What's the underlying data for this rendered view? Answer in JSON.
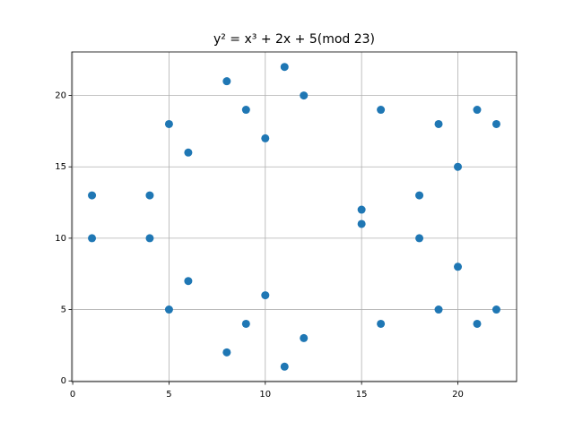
{
  "chart_data": {
    "type": "scatter",
    "title": "y² = x³ + 2x + 5(mod 23)",
    "x": [
      1,
      1,
      4,
      4,
      5,
      5,
      6,
      6,
      8,
      8,
      9,
      9,
      10,
      10,
      11,
      11,
      12,
      12,
      15,
      15,
      16,
      16,
      18,
      18,
      19,
      19,
      20,
      20,
      21,
      21,
      22,
      22
    ],
    "values": [
      10,
      13,
      10,
      13,
      5,
      18,
      7,
      16,
      2,
      21,
      4,
      19,
      6,
      17,
      1,
      22,
      3,
      20,
      11,
      12,
      4,
      19,
      10,
      13,
      5,
      18,
      8,
      15,
      4,
      19,
      5,
      18
    ],
    "color": "#1f77b4",
    "xlim": [
      -0.05,
      23.05
    ],
    "ylim": [
      -0.05,
      23.05
    ],
    "xticks": [
      0,
      5,
      10,
      15,
      20
    ],
    "yticks": [
      0,
      5,
      10,
      15,
      20
    ],
    "grid": true
  }
}
